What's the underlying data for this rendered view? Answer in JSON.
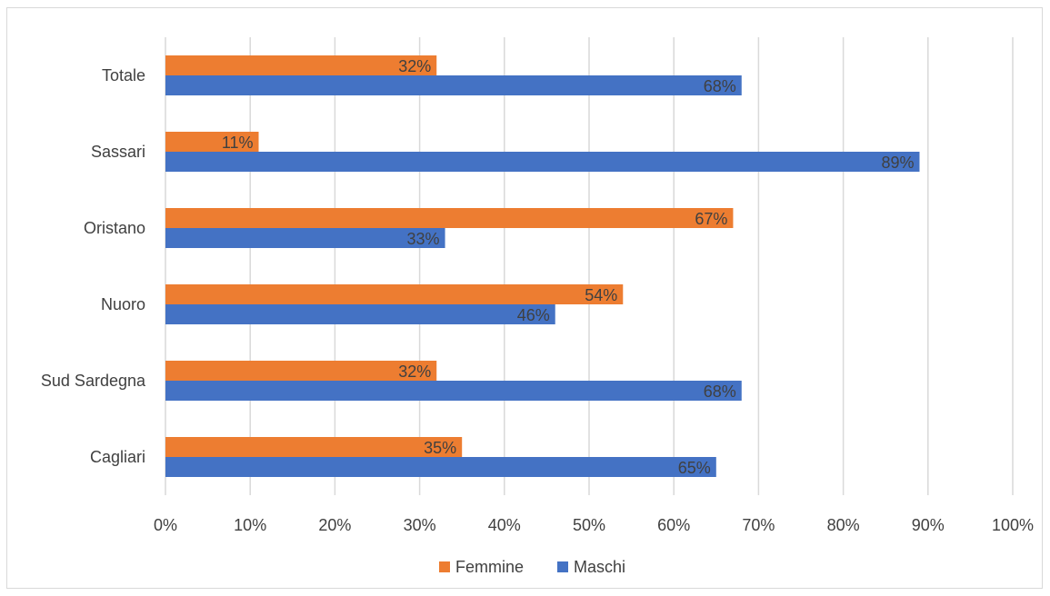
{
  "chart_data": {
    "type": "bar",
    "orientation": "horizontal",
    "categories": [
      "Totale",
      "Sassari",
      "Oristano",
      "Nuoro",
      "Sud Sardegna",
      "Cagliari"
    ],
    "series": [
      {
        "name": "Femmine",
        "color": "#ed7d31",
        "values": [
          0.32,
          0.11,
          0.67,
          0.54,
          0.32,
          0.35
        ],
        "labels": [
          "32%",
          "11%",
          "67%",
          "54%",
          "32%",
          "35%"
        ]
      },
      {
        "name": "Maschi",
        "color": "#4472c4",
        "values": [
          0.68,
          0.89,
          0.33,
          0.46,
          0.68,
          0.65
        ],
        "labels": [
          "68%",
          "89%",
          "33%",
          "46%",
          "68%",
          "65%"
        ]
      }
    ],
    "xlim": [
      0,
      1
    ],
    "x_ticks": [
      "0%",
      "10%",
      "20%",
      "30%",
      "40%",
      "50%",
      "60%",
      "70%",
      "80%",
      "90%",
      "100%"
    ],
    "grid": true,
    "legend_position": "bottom",
    "title": "",
    "xlabel": "",
    "ylabel": ""
  }
}
